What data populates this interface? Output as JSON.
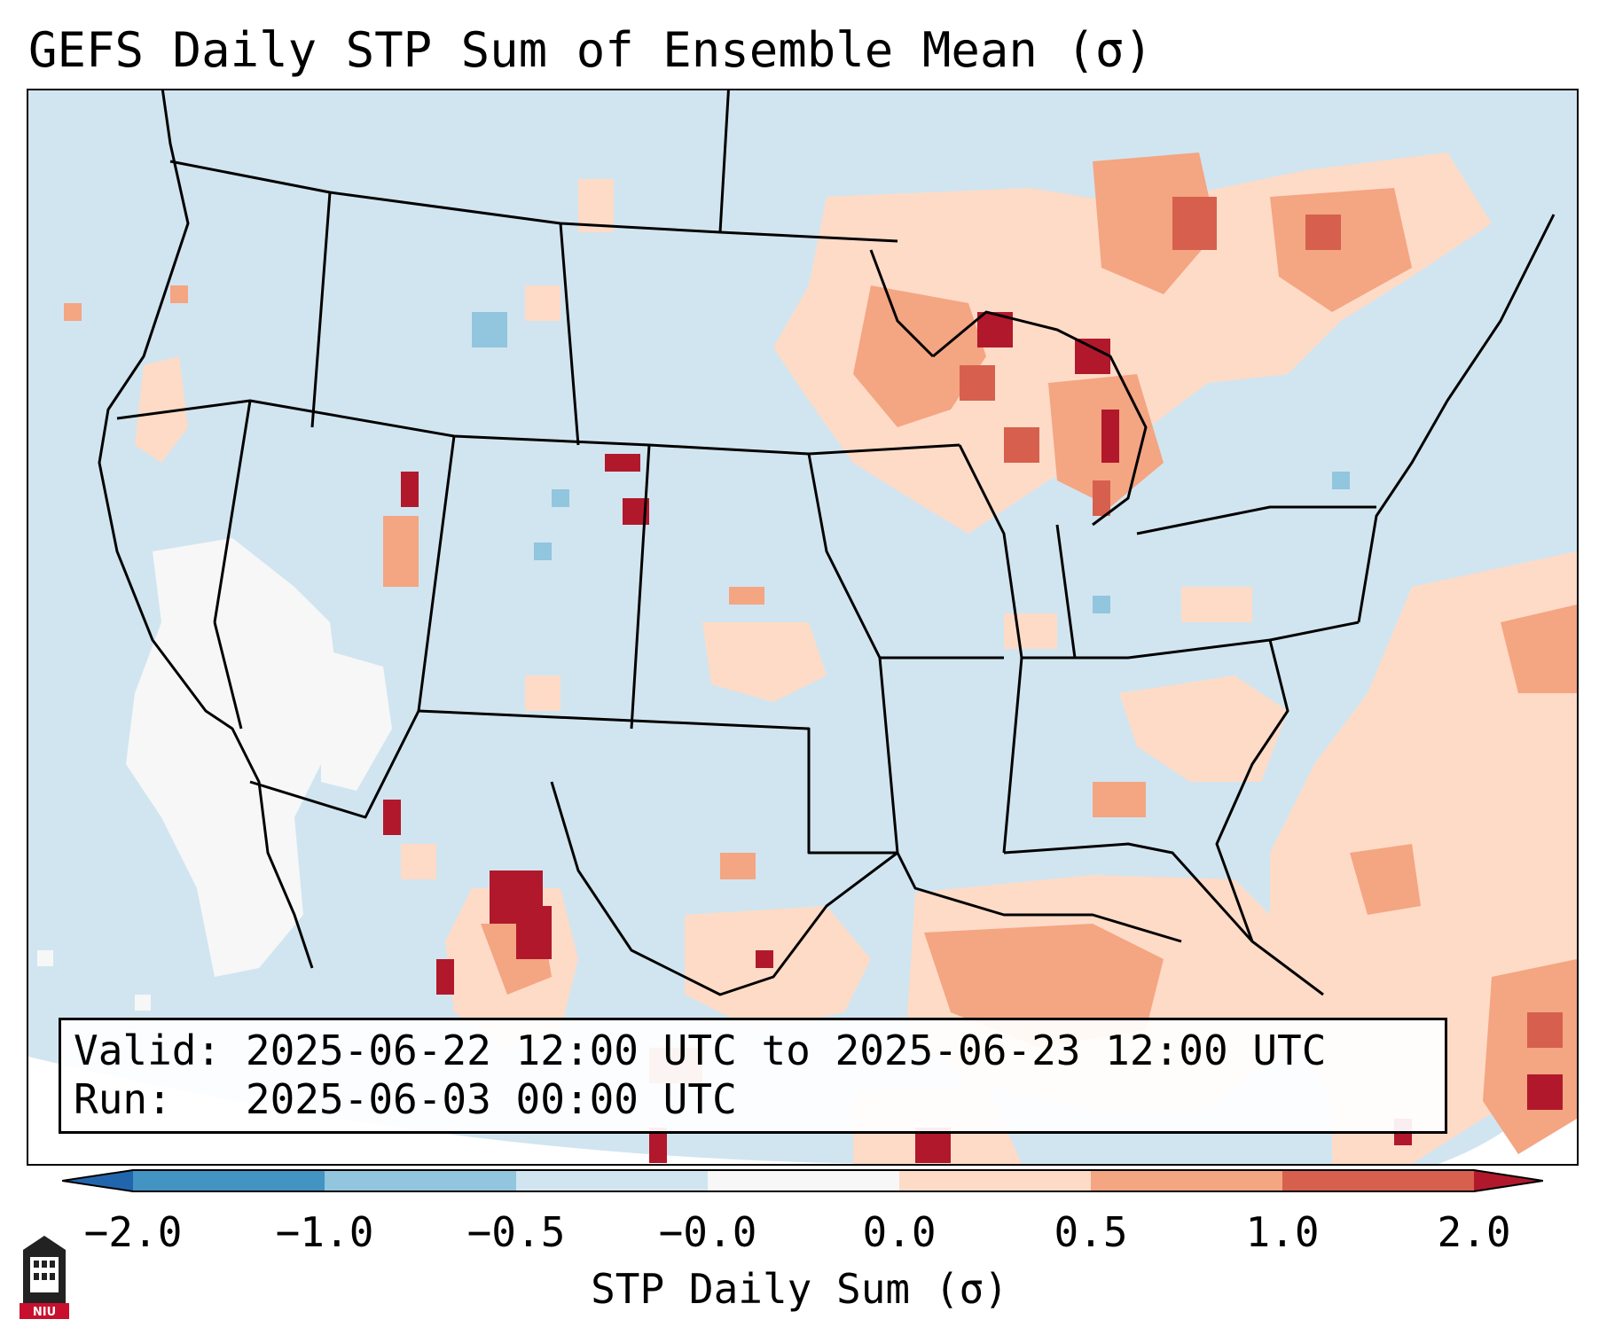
{
  "title": "GEFS Daily STP Sum of Ensemble Mean (σ)",
  "info": {
    "valid_label": "Valid:",
    "valid_value": "2025-06-22 12:00 UTC to 2025-06-23 12:00 UTC",
    "run_label": "Run:",
    "run_value": "2025-06-03 00:00 UTC"
  },
  "colorbar": {
    "label": "STP Daily Sum (σ)",
    "ticks": [
      "−2.0",
      "−1.0",
      "−0.5",
      "−0.0",
      "0.0",
      "0.5",
      "1.0",
      "2.0"
    ],
    "bins": [
      {
        "range": "< -2.0",
        "color": "#2166ac"
      },
      {
        "range": "-2.0 to -1.0",
        "color": "#4393c3"
      },
      {
        "range": "-1.0 to -0.5",
        "color": "#92c5de"
      },
      {
        "range": "-0.5 to -0.0",
        "color": "#d1e5f0"
      },
      {
        "range": "-0.0 to 0.0",
        "color": "#f7f7f7"
      },
      {
        "range": "0.0 to 0.5",
        "color": "#fddbc7"
      },
      {
        "range": "0.5 to 1.0",
        "color": "#f4a582"
      },
      {
        "range": "1.0 to 2.0",
        "color": "#d6604d"
      },
      {
        "range": "> 2.0",
        "color": "#b2182b"
      }
    ]
  },
  "logo_text": "NIU",
  "map": {
    "background_color": "#d1e5f0",
    "regions": [
      {
        "name": "upper-midwest-great-lakes",
        "level": "0.0 to 1.0"
      },
      {
        "name": "ontario-quebec-northeast",
        "level": "0.0 to 2.0"
      },
      {
        "name": "gulf-of-mexico",
        "level": "0.0 to 1.0"
      },
      {
        "name": "western-atlantic",
        "level": "0.0 to 2.0"
      },
      {
        "name": "southwest-northwest-mexico",
        "level": "0.0 to 2.0"
      },
      {
        "name": "desert-southwest-pacific",
        "level": "-0.0 to 0.0"
      }
    ]
  }
}
